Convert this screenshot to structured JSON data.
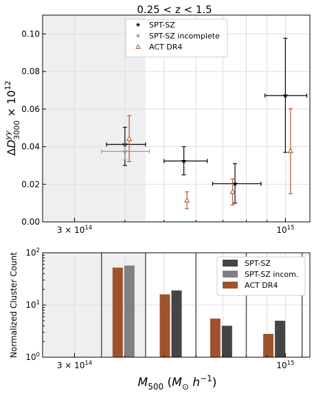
{
  "chart_data": [
    {
      "type": "scatter",
      "title": "0.25 < z < 1.5",
      "xlabel": "",
      "ylabel": "ΔD_3000^yy × 10^12",
      "x_scale": "log",
      "xlim": [
        250000000000000,
        1150000000000000
      ],
      "ylim": [
        0.0,
        0.11
      ],
      "grid": true,
      "shaded_x_range": [
        250000000000000,
        450000000000000
      ],
      "x_ticks": [
        {
          "value": 300000000000000,
          "label": "3 × 10^14"
        },
        {
          "value": 1000000000000000,
          "label": "10^15"
        }
      ],
      "y_ticks": [
        "0.00",
        "0.02",
        "0.04",
        "0.06",
        "0.08",
        "0.10"
      ],
      "legend_position": "top-center",
      "series": [
        {
          "name": "SPT-SZ",
          "marker": "star",
          "color": "#000000",
          "points": [
            {
              "x": 400000000000000,
              "y": 0.0412,
              "xerr": [
                360000000000000,
                450000000000000
              ],
              "yerr": [
                0.03,
                0.0503
              ]
            },
            {
              "x": 560000000000000,
              "y": 0.0324,
              "xerr": [
                500000000000000,
                640000000000000
              ],
              "yerr": [
                0.025,
                0.04
              ]
            },
            {
              "x": 750000000000000,
              "y": 0.0203,
              "xerr": [
                660000000000000,
                870000000000000
              ],
              "yerr": [
                0.01,
                0.031
              ]
            },
            {
              "x": 1000000000000000,
              "y": 0.0672,
              "xerr": [
                890000000000000,
                1130000000000000
              ],
              "yerr": [
                0.037,
                0.0977
              ]
            }
          ]
        },
        {
          "name": "SPT-SZ incomplete",
          "marker": "star",
          "color": "#999999",
          "points": [
            {
              "x": 400000000000000,
              "y": 0.0375,
              "xerr": [
                350000000000000,
                460000000000000
              ],
              "yerr": [
                0.033,
                0.042
              ]
            }
          ]
        },
        {
          "name": "ACT DR4",
          "marker": "triangle-open",
          "color": "#b5562a",
          "points": [
            {
              "x": 410000000000000,
              "y": 0.0442,
              "yerr": [
                0.032,
                0.0565
              ]
            },
            {
              "x": 570000000000000,
              "y": 0.0115,
              "yerr": [
                0.007,
                0.016
              ]
            },
            {
              "x": 740000000000000,
              "y": 0.016,
              "yerr": [
                0.009,
                0.0228
              ]
            },
            {
              "x": 1030000000000000,
              "y": 0.0377,
              "yerr": [
                0.015,
                0.0602
              ]
            }
          ]
        }
      ]
    },
    {
      "type": "bar",
      "xlabel": "M_500 (M_⊙ h^−1)",
      "ylabel": "Normalized Cluster Count",
      "x_scale": "log",
      "y_scale": "log",
      "xlim": [
        250000000000000,
        1150000000000000
      ],
      "ylim": [
        1,
        100
      ],
      "shaded_x_range": [
        250000000000000,
        450000000000000
      ],
      "bin_edges": [
        350000000000000,
        450000000000000,
        600000000000000,
        800000000000000,
        1100000000000000
      ],
      "x_ticks": [
        {
          "value": 300000000000000,
          "label": "3 × 10^14"
        },
        {
          "value": 1000000000000000,
          "label": "10^15"
        }
      ],
      "y_ticks": [
        {
          "value": 1,
          "label": "10^0"
        },
        {
          "value": 10,
          "label": "10^1"
        },
        {
          "value": 100,
          "label": "10^2"
        }
      ],
      "legend_position": "top-right",
      "series": [
        {
          "name": "ACT DR4",
          "color": "#a0522d",
          "values": [
            52,
            16,
            5.5,
            2.8
          ]
        },
        {
          "name": "SPT-SZ incom.",
          "color": "#808080",
          "values": [
            57,
            null,
            null,
            null
          ]
        },
        {
          "name": "SPT-SZ",
          "color": "#444444",
          "values": [
            null,
            19,
            4.0,
            5.0
          ]
        }
      ],
      "legend_order": [
        "SPT-SZ",
        "SPT-SZ incom.",
        "ACT DR4"
      ]
    }
  ]
}
